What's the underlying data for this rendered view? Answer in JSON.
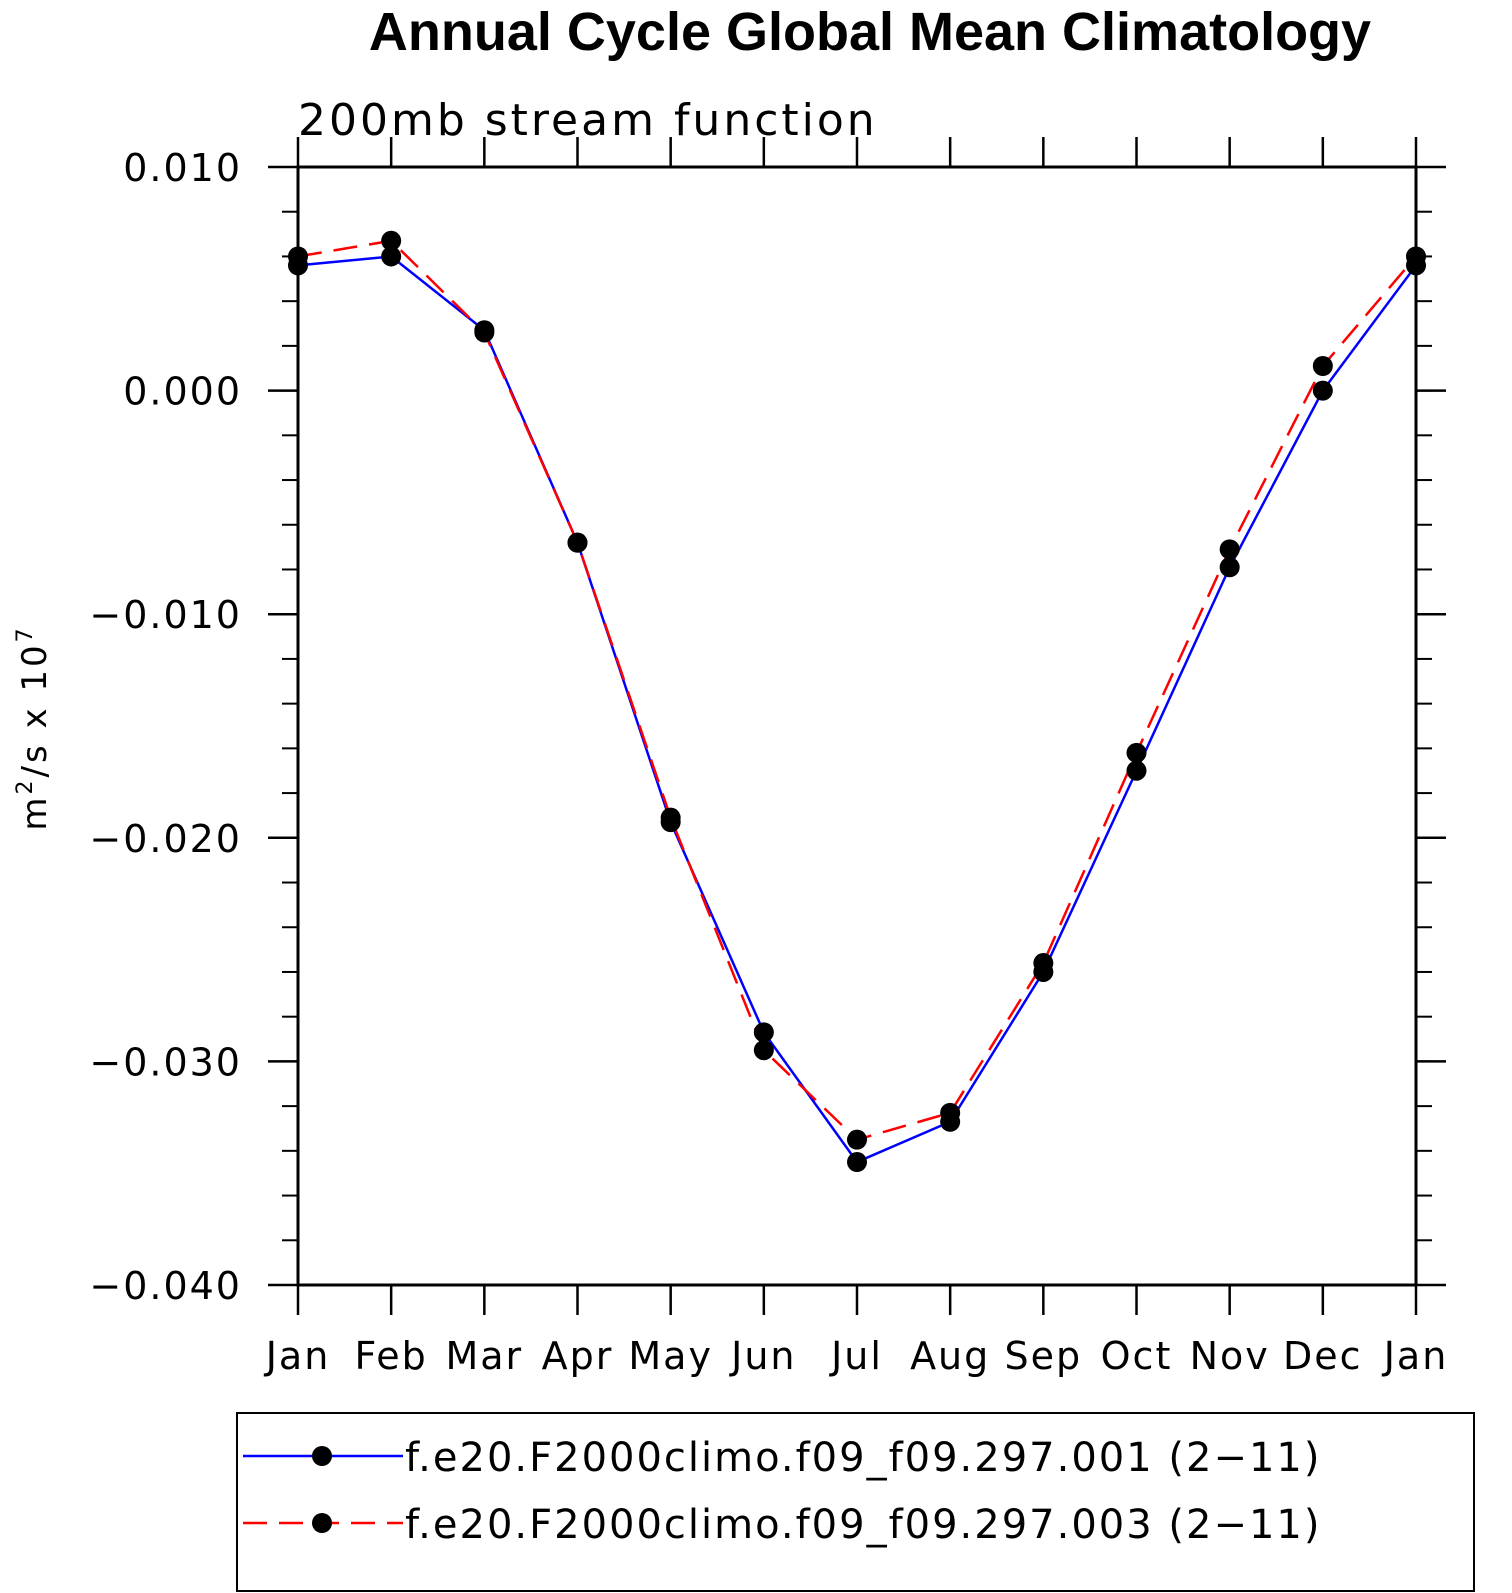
{
  "chart_data": {
    "type": "line",
    "title": "Annual Cycle Global Mean Climatology",
    "subtitle": "200mb stream function",
    "ylabel_base": "m",
    "ylabel_sup": "2",
    "ylabel_mid": "/s x 10",
    "ylabel_exp": "7",
    "xlabel": "",
    "categories": [
      "Jan",
      "Feb",
      "Mar",
      "Apr",
      "May",
      "Jun",
      "Jul",
      "Aug",
      "Sep",
      "Oct",
      "Nov",
      "Dec",
      "Jan"
    ],
    "ylim": [
      -0.04,
      0.01
    ],
    "yticks": [
      0.01,
      0.0,
      -0.01,
      -0.02,
      -0.03,
      -0.04
    ],
    "ytick_labels": [
      "0.010",
      "0.000",
      "−0.010",
      "−0.020",
      "−0.030",
      "−0.040"
    ],
    "yminor_step": 0.002,
    "legend_position": "bottom",
    "series": [
      {
        "name": "f.e20.F2000climo.f09_f09.297.001 (2−11)",
        "color": "#0000ff",
        "dash": "solid",
        "marker": "filled-circle",
        "values": [
          0.0056,
          0.006,
          0.0027,
          -0.0068,
          -0.0193,
          -0.0287,
          -0.0345,
          -0.0327,
          -0.026,
          -0.017,
          -0.0079,
          0.0,
          0.0056
        ]
      },
      {
        "name": "f.e20.F2000climo.f09_f09.297.003 (2−11)",
        "color": "#ff0000",
        "dash": "dashed",
        "marker": "filled-circle",
        "values": [
          0.006,
          0.0067,
          0.0026,
          -0.0068,
          -0.0191,
          -0.0295,
          -0.0335,
          -0.0323,
          -0.0256,
          -0.0162,
          -0.0071,
          0.0011,
          0.006
        ]
      }
    ]
  }
}
